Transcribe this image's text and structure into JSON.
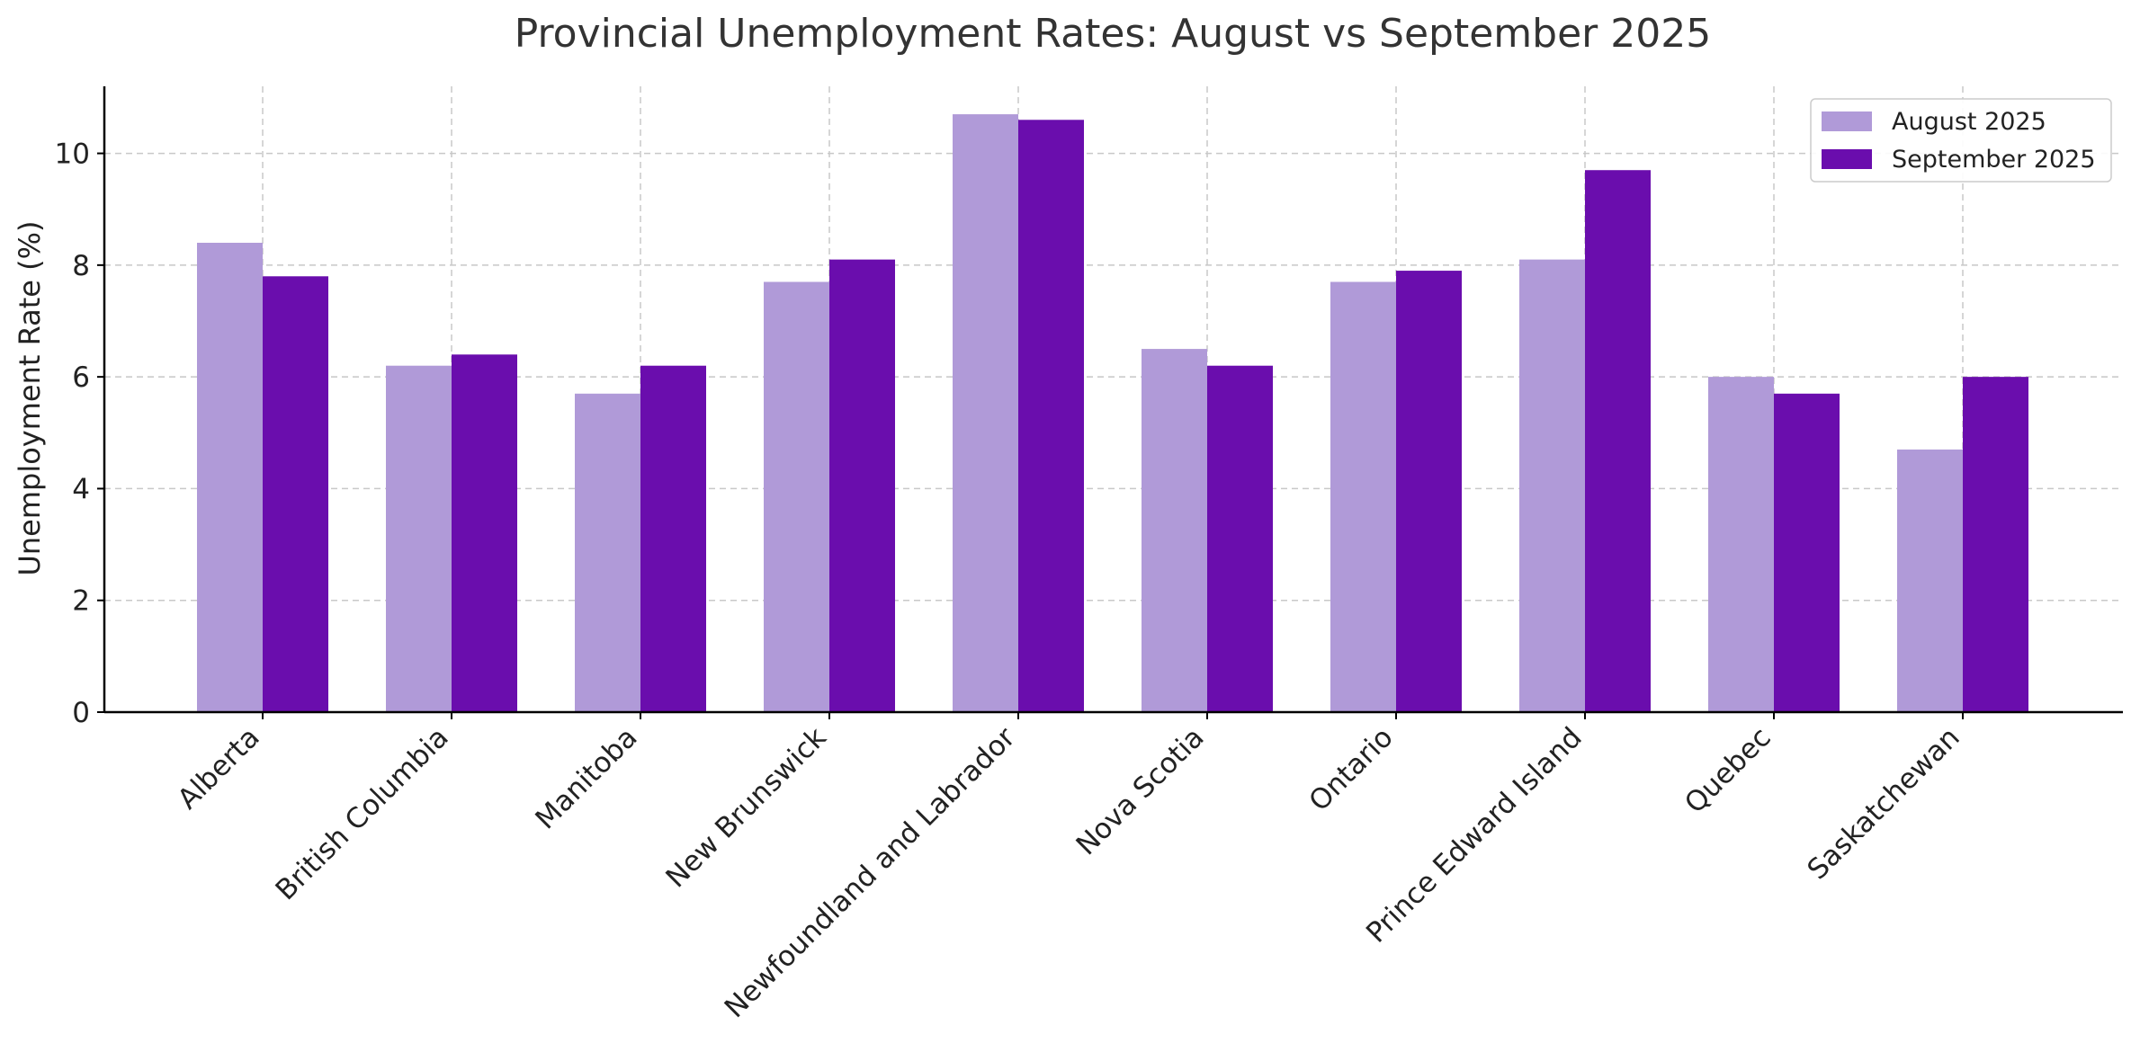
{
  "chart_data": {
    "type": "bar",
    "title": "Provincial Unemployment Rates: August vs September 2025",
    "xlabel": "",
    "ylabel": "Unemployment Rate (%)",
    "categories": [
      "Alberta",
      "British Columbia",
      "Manitoba",
      "New Brunswick",
      "Newfoundland and Labrador",
      "Nova Scotia",
      "Ontario",
      "Prince Edward Island",
      "Quebec",
      "Saskatchewan"
    ],
    "series": [
      {
        "name": "August 2025",
        "color": "#b09ad8",
        "values": [
          8.4,
          6.2,
          5.7,
          7.7,
          10.7,
          6.5,
          7.7,
          8.1,
          6.0,
          4.7
        ]
      },
      {
        "name": "September 2025",
        "color": "#6a0dad",
        "values": [
          7.8,
          6.4,
          6.2,
          8.1,
          10.6,
          6.2,
          7.9,
          9.7,
          5.7,
          6.0
        ]
      }
    ],
    "ylim": [
      0,
      11.2
    ],
    "yticks": [
      0,
      2,
      4,
      6,
      8,
      10
    ],
    "grid": true,
    "legend_position": "top-right"
  }
}
